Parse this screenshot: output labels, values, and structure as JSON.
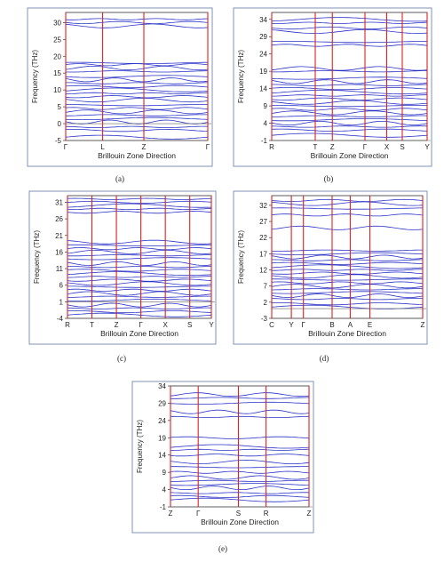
{
  "chart_data": [
    {
      "id": "a",
      "type": "line",
      "caption": "(a)",
      "ylabel": "Frequency (THz)",
      "xlabel": "Brillouin Zone Direction",
      "ylim": [
        -5,
        33
      ],
      "yticks": [
        -5,
        0,
        5,
        10,
        15,
        20,
        25,
        30
      ],
      "xticks": [
        "Γ",
        "L",
        "Z",
        "Γ"
      ],
      "xpos": [
        0,
        0.26,
        0.55,
        1
      ],
      "guide_value": 0,
      "band_colors": {
        "bands": "#2b33c7",
        "lines": "#e02020"
      },
      "bands": [
        -4,
        -2,
        -1,
        0.5,
        1.5,
        2.5,
        3.5,
        4.5,
        5.5,
        7,
        8,
        9,
        10,
        11,
        12,
        13,
        14,
        15.5,
        16.5,
        17.5,
        18,
        29,
        30,
        31
      ]
    },
    {
      "id": "b",
      "type": "line",
      "caption": "(b)",
      "ylabel": "Frequency (THz)",
      "xlabel": "Brillouin Zone Direction",
      "ylim": [
        -1,
        36
      ],
      "yticks": [
        -1,
        4,
        9,
        14,
        19,
        24,
        29,
        34
      ],
      "xticks": [
        "R",
        "T",
        "Z",
        "Γ",
        "X",
        "S",
        "Y"
      ],
      "xpos": [
        0,
        0.28,
        0.39,
        0.6,
        0.74,
        0.84,
        1
      ],
      "guide_value": -1,
      "band_colors": {
        "bands": "#2b33c7",
        "lines": "#e02020"
      },
      "bands": [
        0.5,
        2,
        3,
        4,
        5,
        6,
        7,
        8,
        9,
        10,
        11,
        12,
        13,
        14,
        15,
        16,
        17,
        19,
        19.8,
        26.5,
        27.5,
        30.5,
        31.5,
        33,
        34
      ]
    },
    {
      "id": "c",
      "type": "line",
      "caption": "(c)",
      "ylabel": "Frequency (THz)",
      "xlabel": "Brillouin Zone Direction",
      "ylim": [
        -4,
        33
      ],
      "yticks": [
        -4,
        1,
        6,
        11,
        16,
        21,
        26,
        31
      ],
      "xticks": [
        "R",
        "T",
        "Z",
        "Γ",
        "X",
        "S",
        "Y"
      ],
      "xpos": [
        0,
        0.17,
        0.34,
        0.51,
        0.68,
        0.85,
        1
      ],
      "guide_value": 1,
      "band_colors": {
        "bands": "#2b33c7",
        "lines": "#e02020"
      },
      "bands": [
        -3,
        -2,
        -1,
        0,
        1.5,
        2.5,
        3.5,
        4.5,
        5.5,
        6.5,
        7.5,
        8.5,
        9.5,
        10.5,
        11.5,
        12.5,
        14,
        15,
        16,
        17,
        18,
        19,
        28,
        29,
        30,
        31,
        32
      ]
    },
    {
      "id": "d",
      "type": "line",
      "caption": "(d)",
      "ylabel": "Frequency (THz)",
      "xlabel": "Brillouin Zone Direction",
      "ylim": [
        -3,
        35
      ],
      "yticks": [
        -3,
        2,
        7,
        12,
        17,
        22,
        27,
        32
      ],
      "xticks": [
        "C",
        "Y",
        "Γ",
        "B",
        "A",
        "E",
        "Z"
      ],
      "xpos": [
        0,
        0.13,
        0.21,
        0.4,
        0.52,
        0.65,
        1
      ],
      "guide_value": 0,
      "band_colors": {
        "bands": "#2b33c7",
        "lines": "#e02020"
      },
      "bands": [
        0.5,
        1.5,
        3,
        4,
        5,
        6,
        7,
        8,
        9,
        10,
        11,
        12,
        13,
        14,
        15,
        16,
        17,
        18,
        25,
        29,
        31,
        32.5,
        33.5
      ]
    },
    {
      "id": "e",
      "type": "line",
      "caption": "(e)",
      "ylabel": "Frequency (THz)",
      "xlabel": "Brillouin Zone Direction",
      "ylim": [
        -1,
        34
      ],
      "yticks": [
        -1,
        4,
        9,
        14,
        19,
        24,
        29,
        34
      ],
      "xticks": [
        "Z",
        "Γ",
        "S",
        "R",
        "Z"
      ],
      "xpos": [
        0,
        0.2,
        0.49,
        0.69,
        1
      ],
      "guide_value": -1,
      "band_colors": {
        "bands": "#2b33c7",
        "lines": "#e02020"
      },
      "bands": [
        1,
        2,
        3,
        4.5,
        5.5,
        6.5,
        7.5,
        9,
        10.5,
        12,
        14,
        15.5,
        16.5,
        19,
        25,
        26.5,
        29,
        30.5,
        31.5
      ]
    }
  ]
}
